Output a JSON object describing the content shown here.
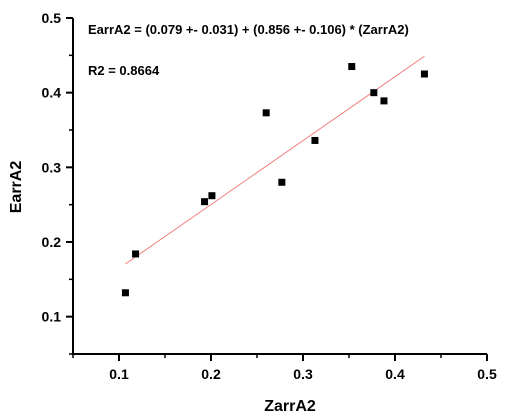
{
  "chart_data": {
    "type": "scatter",
    "xlabel": "ZarrA2",
    "ylabel": "EarrA2",
    "xlim": [
      0.05,
      0.5
    ],
    "ylim": [
      0.05,
      0.5
    ],
    "x_ticks": [
      0.1,
      0.2,
      0.3,
      0.4,
      0.5
    ],
    "y_ticks": [
      0.1,
      0.2,
      0.3,
      0.4,
      0.5
    ],
    "x_tick_labels": [
      "0.1",
      "0.2",
      "0.3",
      "0.4",
      "0.5"
    ],
    "y_tick_labels": [
      "0.1",
      "0.2",
      "0.3",
      "0.4",
      "0.5"
    ],
    "grid": false,
    "series": [
      {
        "marker": "square",
        "color": "#000000",
        "points": [
          {
            "x": 0.107,
            "y": 0.132
          },
          {
            "x": 0.118,
            "y": 0.184
          },
          {
            "x": 0.193,
            "y": 0.254
          },
          {
            "x": 0.201,
            "y": 0.262
          },
          {
            "x": 0.26,
            "y": 0.373
          },
          {
            "x": 0.277,
            "y": 0.28
          },
          {
            "x": 0.313,
            "y": 0.336
          },
          {
            "x": 0.353,
            "y": 0.435
          },
          {
            "x": 0.377,
            "y": 0.4
          },
          {
            "x": 0.388,
            "y": 0.389
          },
          {
            "x": 0.432,
            "y": 0.425
          }
        ]
      }
    ],
    "fit_line": {
      "intercept": 0.079,
      "slope": 0.856,
      "x_range": [
        0.107,
        0.432
      ],
      "color": "#f08080"
    },
    "annotations": {
      "equation": "EarrA2 = (0.079 +- 0.031) + (0.856 +- 0.106) * (ZarrA2)",
      "r2": "R2 = 0.8664"
    }
  }
}
